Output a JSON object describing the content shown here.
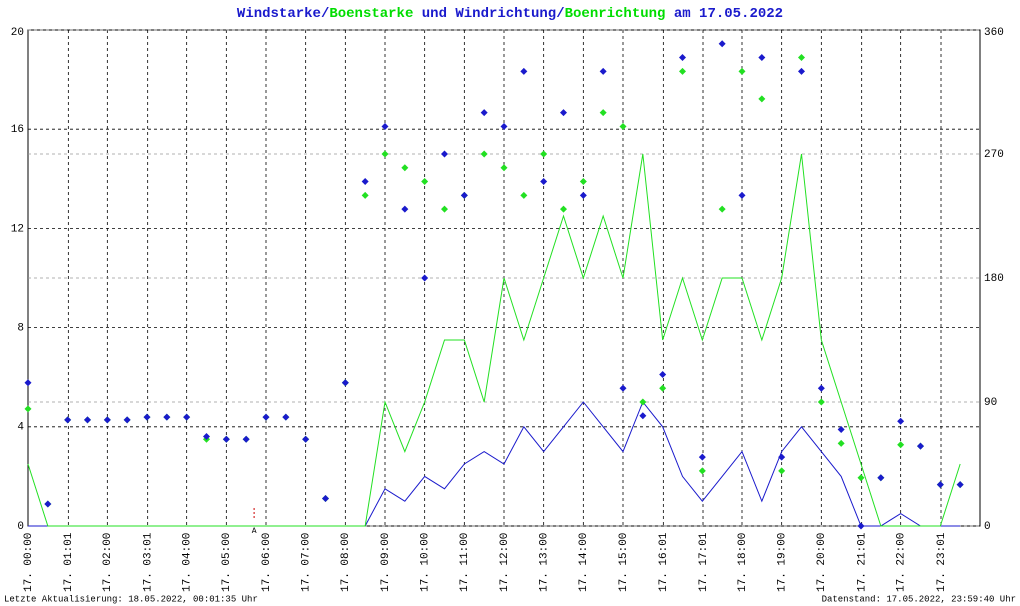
{
  "chart_data": {
    "type": "line",
    "title_parts": [
      "Windstarke",
      "/",
      "Boenstarke",
      " und ",
      "Windrichtung",
      "/",
      "Boenrichtung",
      " am 17.05.2022"
    ],
    "title_colors": [
      "#1a1acc",
      "#1a1acc",
      "#00dd00",
      "#1a1acc",
      "#1a1acc",
      "#1a1acc",
      "#00dd00",
      "#1a1acc"
    ],
    "footer_left": "Letzte Aktualisierung: 18.05.2022, 00:01:35 Uhr",
    "footer_right": "Datenstand: 17.05.2022, 23:59:40 Uhr",
    "annotation": {
      "x": 5.7,
      "text": "A",
      "color": "#cc0000"
    },
    "x": [
      0,
      0.5,
      1,
      1.5,
      2,
      2.5,
      3,
      3.5,
      4,
      4.5,
      5,
      5.5,
      6,
      6.5,
      7,
      7.5,
      8,
      8.5,
      9,
      9.5,
      10,
      10.5,
      11,
      11.5,
      12,
      12.5,
      13,
      13.5,
      14,
      14.5,
      15,
      15.5,
      16,
      16.5,
      17,
      17.5,
      18,
      18.5,
      19,
      19.5,
      20,
      20.5,
      21,
      21.5,
      22,
      22.5,
      23,
      23.5
    ],
    "xlim": [
      0,
      24
    ],
    "xticks": [
      {
        "value": 0,
        "label": "17. 00:00"
      },
      {
        "value": 1.017,
        "label": "17. 01:01"
      },
      {
        "value": 2,
        "label": "17. 02:00"
      },
      {
        "value": 3.017,
        "label": "17. 03:01"
      },
      {
        "value": 4,
        "label": "17. 04:00"
      },
      {
        "value": 5,
        "label": "17. 05:00"
      },
      {
        "value": 6,
        "label": "17. 06:00"
      },
      {
        "value": 7,
        "label": "17. 07:00"
      },
      {
        "value": 8,
        "label": "17. 08:00"
      },
      {
        "value": 9,
        "label": "17. 09:00"
      },
      {
        "value": 10,
        "label": "17. 10:00"
      },
      {
        "value": 11,
        "label": "17. 11:00"
      },
      {
        "value": 12,
        "label": "17. 12:00"
      },
      {
        "value": 13,
        "label": "17. 13:00"
      },
      {
        "value": 14,
        "label": "17. 14:00"
      },
      {
        "value": 15,
        "label": "17. 15:00"
      },
      {
        "value": 16.017,
        "label": "17. 16:01"
      },
      {
        "value": 17.017,
        "label": "17. 17:01"
      },
      {
        "value": 18,
        "label": "17. 18:00"
      },
      {
        "value": 19,
        "label": "17. 19:00"
      },
      {
        "value": 20,
        "label": "17. 20:00"
      },
      {
        "value": 21.017,
        "label": "17. 21:01"
      },
      {
        "value": 22,
        "label": "17. 22:00"
      },
      {
        "value": 23.017,
        "label": "17. 23:01"
      }
    ],
    "ylim": [
      0,
      20
    ],
    "yticks": [
      0,
      4,
      8,
      12,
      16,
      20
    ],
    "y2lim": [
      0,
      360
    ],
    "y2ticks": [
      0,
      90,
      180,
      270,
      360
    ],
    "grid": true,
    "series": [
      {
        "name": "Windstarke",
        "type": "line",
        "color": "#1a1acc",
        "values": [
          0,
          0,
          0,
          0,
          0,
          0,
          0,
          0,
          0,
          0,
          0,
          0,
          0,
          0,
          0,
          0,
          0,
          0,
          1.5,
          1,
          2,
          1.5,
          2.5,
          3,
          2.5,
          4,
          3,
          4,
          5,
          4,
          3,
          5,
          4,
          2,
          1,
          2,
          3,
          1,
          3,
          4,
          3,
          2,
          0,
          0,
          0.5,
          0,
          0,
          0
        ]
      },
      {
        "name": "Boenstarke",
        "type": "line",
        "color": "#22e022",
        "values": [
          2.5,
          0,
          0,
          0,
          0,
          0,
          0,
          0,
          0,
          0,
          0,
          0,
          0,
          0,
          0,
          0,
          0,
          0,
          5,
          3,
          5,
          7.5,
          7.5,
          5,
          10,
          7.5,
          10,
          12.5,
          10,
          12.5,
          10,
          15,
          7.5,
          10,
          7.5,
          10,
          10,
          7.5,
          10,
          15,
          7.5,
          5,
          2.5,
          0,
          0,
          0,
          0,
          2.5
        ]
      },
      {
        "name": "Boenrichtung",
        "type": "scatter",
        "axis": "y2",
        "color": "#22e022",
        "values": [
          85,
          16,
          77,
          77,
          77,
          77,
          79,
          79,
          79,
          63,
          63,
          63,
          79,
          79,
          63,
          20,
          104,
          240,
          270,
          260,
          250,
          230,
          240,
          270,
          260,
          240,
          270,
          230,
          250,
          300,
          290,
          90,
          100,
          330,
          40,
          230,
          330,
          310,
          40,
          340,
          90,
          60,
          35,
          35,
          59,
          58,
          30,
          30
        ]
      },
      {
        "name": "Windrichtung",
        "type": "scatter",
        "axis": "y2",
        "color": "#1a1acc",
        "values": [
          104,
          16,
          77,
          77,
          77,
          77,
          79,
          79,
          79,
          65,
          63,
          63,
          79,
          79,
          63,
          20,
          104,
          250,
          290,
          230,
          180,
          270,
          240,
          300,
          290,
          330,
          250,
          300,
          240,
          330,
          100,
          80,
          110,
          340,
          50,
          350,
          240,
          340,
          50,
          330,
          100,
          70,
          0,
          35,
          76,
          58,
          30,
          30
        ]
      }
    ]
  }
}
